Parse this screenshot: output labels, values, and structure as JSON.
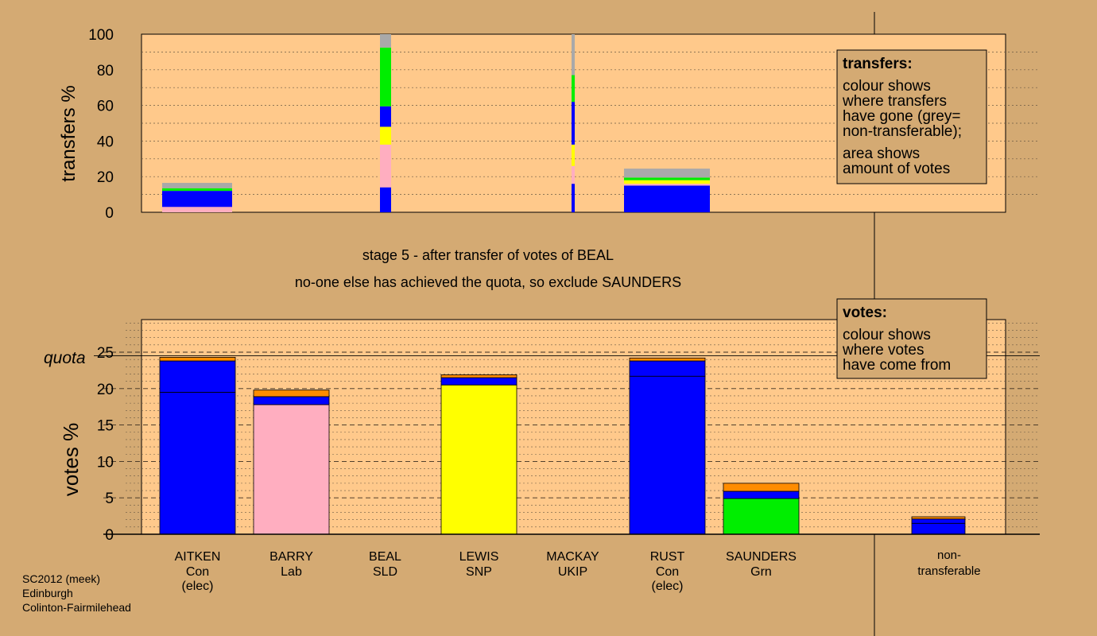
{
  "chart_data": [
    {
      "type": "bar",
      "panel": "transfers",
      "ylabel": "transfers %",
      "ylim": [
        0,
        100
      ],
      "yticks": [
        0,
        20,
        40,
        60,
        80,
        100
      ],
      "legend": {
        "title": "transfers:",
        "lines": [
          "colour shows",
          "where transfers",
          "have gone (grey=",
          "non-transferable);"
        ],
        "lines2": [
          "area shows",
          "amount of votes"
        ]
      },
      "bars": [
        {
          "candidate": "AITKEN",
          "segments": [
            {
              "color": "#ffaec0",
              "value": 3
            },
            {
              "color": "#0000ff",
              "value": 9
            },
            {
              "color": "#00ee00",
              "value": 1.5
            },
            {
              "color": "#a9a9a9",
              "value": 3
            }
          ]
        },
        {
          "candidate": "BEAL",
          "segments": [
            {
              "color": "#0000ff",
              "value": 14
            },
            {
              "color": "#ffaec0",
              "value": 24
            },
            {
              "color": "#ffff00",
              "value": 10
            },
            {
              "color": "#0000ff",
              "value": 11.5
            },
            {
              "color": "#00ee00",
              "value": 33
            },
            {
              "color": "#a9a9a9",
              "value": 7.5
            }
          ]
        },
        {
          "candidate": "MACKAY",
          "segments": [
            {
              "color": "#0000ff",
              "value": 16
            },
            {
              "color": "#ffaec0",
              "value": 10
            },
            {
              "color": "#ffff00",
              "value": 12
            },
            {
              "color": "#0000ff",
              "value": 24
            },
            {
              "color": "#00ee00",
              "value": 15
            },
            {
              "color": "#a9a9a9",
              "value": 23
            }
          ]
        },
        {
          "candidate": "RUST",
          "segments": [
            {
              "color": "#0000ff",
              "value": 15
            },
            {
              "color": "#ffaec0",
              "value": 1
            },
            {
              "color": "#ffff00",
              "value": 2
            },
            {
              "color": "#00ee00",
              "value": 1.5
            },
            {
              "color": "#a9a9a9",
              "value": 5
            }
          ]
        }
      ]
    },
    {
      "type": "bar",
      "panel": "votes",
      "ylabel": "votes %",
      "ylim": [
        0,
        29
      ],
      "yticks": [
        0,
        5,
        10,
        15,
        20,
        25
      ],
      "quota_label": "quota",
      "quota": 24.5,
      "legend": {
        "title": "votes:",
        "lines": [
          "colour shows",
          "where votes",
          "have come from"
        ]
      },
      "categories": [
        {
          "name": "AITKEN",
          "party": "Con",
          "note": "(elec)"
        },
        {
          "name": "BARRY",
          "party": "Lab",
          "note": ""
        },
        {
          "name": "BEAL",
          "party": "SLD",
          "note": ""
        },
        {
          "name": "LEWIS",
          "party": "SNP",
          "note": ""
        },
        {
          "name": "MACKAY",
          "party": "UKIP",
          "note": ""
        },
        {
          "name": "RUST",
          "party": "Con",
          "note": "(elec)"
        },
        {
          "name": "SAUNDERS",
          "party": "Grn",
          "note": ""
        }
      ],
      "nontransferable": {
        "line1": "non-",
        "line2": "transferable",
        "value": 2.4
      },
      "bars": [
        {
          "candidate": "AITKEN",
          "segments": [
            {
              "color": "#0000ff",
              "value": 19.5
            },
            {
              "color": "#0000ff",
              "value": 4.3
            },
            {
              "color": "#ff8c00",
              "value": 0.5
            }
          ]
        },
        {
          "candidate": "BARRY",
          "segments": [
            {
              "color": "#ffaec0",
              "value": 17.8
            },
            {
              "color": "#0000ff",
              "value": 1.1
            },
            {
              "color": "#ff8c00",
              "value": 0.9
            }
          ]
        },
        {
          "candidate": "BEAL",
          "segments": []
        },
        {
          "candidate": "LEWIS",
          "segments": [
            {
              "color": "#ffff00",
              "value": 20.5
            },
            {
              "color": "#0000ff",
              "value": 1.0
            },
            {
              "color": "#ff8c00",
              "value": 0.4
            }
          ]
        },
        {
          "candidate": "MACKAY",
          "segments": []
        },
        {
          "candidate": "RUST",
          "segments": [
            {
              "color": "#0000ff",
              "value": 21.7
            },
            {
              "color": "#0000ff",
              "value": 2.1
            },
            {
              "color": "#ff8c00",
              "value": 0.4
            }
          ]
        },
        {
          "candidate": "SAUNDERS",
          "segments": [
            {
              "color": "#00ee00",
              "value": 4.9
            },
            {
              "color": "#0000ff",
              "value": 1.0
            },
            {
              "color": "#ff8c00",
              "value": 1.1
            }
          ]
        }
      ],
      "nontransferable_segments": [
        {
          "color": "#0000ff",
          "value": 1.5
        },
        {
          "color": "#0000ff",
          "value": 0.6
        },
        {
          "color": "#ff8c00",
          "value": 0.3
        }
      ]
    }
  ],
  "header": {
    "stage_line": "stage 5 - after transfer of votes of BEAL",
    "action_line": "no-one else has achieved the quota, so exclude SAUNDERS"
  },
  "footer": {
    "line1": "SC2012 (meek)",
    "line2": "Edinburgh",
    "line3": "Colinton-Fairmilehead"
  },
  "colors": {
    "background": "#d4aa73",
    "plot_background": "#ffc98b",
    "con": "#0000ff",
    "lab": "#ffaec0",
    "snp": "#ffff00",
    "grn": "#00ee00",
    "transfer": "#ff8c00",
    "nontransferable": "#a9a9a9"
  }
}
